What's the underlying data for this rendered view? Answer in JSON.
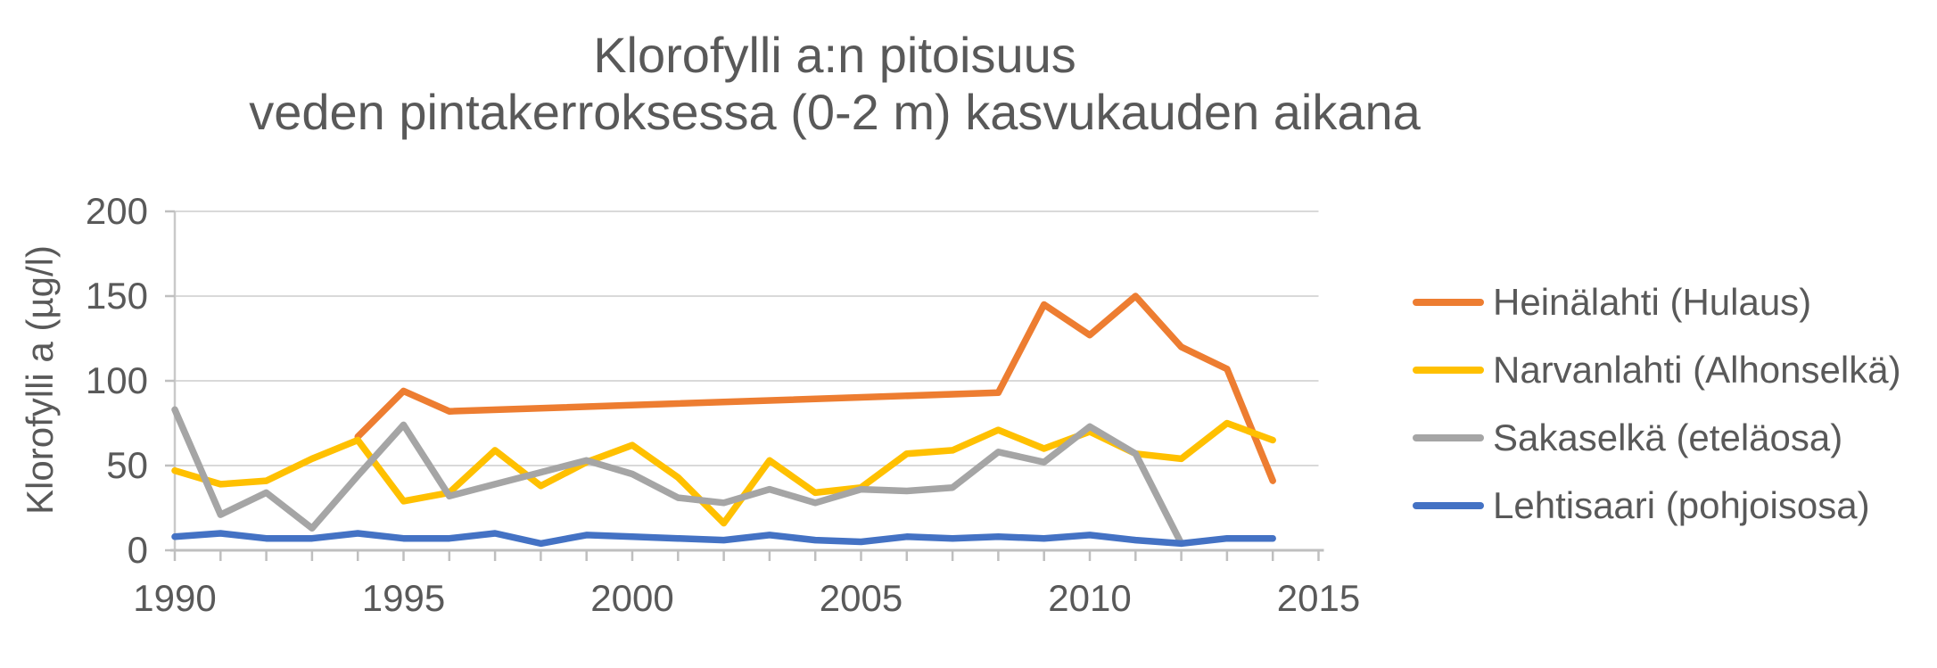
{
  "title": {
    "line1": "Klorofylli a:n pitoisuus",
    "line2": "veden pintakerroksessa (0-2 m) kasvukauden aikana"
  },
  "y_axis": {
    "label": "Klorofylli a (µg/l)",
    "ticks": [
      "200",
      "150",
      "100",
      "50",
      "0"
    ]
  },
  "x_axis": {
    "ticks": [
      "1990",
      "1995",
      "2000",
      "2005",
      "2010",
      "2015"
    ]
  },
  "legend": {
    "items": [
      {
        "label": "Heinälahti (Hulaus)",
        "color": "#ED7D31"
      },
      {
        "label": "Narvanlahti (Alhonselkä)",
        "color": "#FFC000"
      },
      {
        "label": "Sakaselkä (eteläosa)",
        "color": "#A5A5A5"
      },
      {
        "label": "Lehtisaari (pohjoisosa)",
        "color": "#4472C4"
      }
    ]
  },
  "chart_data": {
    "type": "line",
    "title": "Klorofylli a:n pitoisuus veden pintakerroksessa (0-2 m) kasvukauden aikana",
    "xlabel": "",
    "ylabel": "Klorofylli a (µg/l)",
    "xlim": [
      1990,
      2015
    ],
    "ylim": [
      0,
      200
    ],
    "y_gridlines": [
      50,
      100,
      150,
      200
    ],
    "x_minor_tick_interval_years": 1,
    "x_major_tick_labels": [
      1990,
      1995,
      2000,
      2005,
      2010,
      2015
    ],
    "grid": true,
    "legend_position": "right",
    "gap_handling": "missing years connected with straight segments (Heinälahti has no data 1997-2007)",
    "series": [
      {
        "name": "Heinälahti (Hulaus)",
        "color": "#ED7D31",
        "points": [
          [
            1994,
            67
          ],
          [
            1995,
            94
          ],
          [
            1996,
            82
          ],
          [
            2008,
            93
          ],
          [
            2009,
            145
          ],
          [
            2010,
            127
          ],
          [
            2011,
            150
          ],
          [
            2012,
            120
          ],
          [
            2013,
            107
          ],
          [
            2014,
            41
          ]
        ]
      },
      {
        "name": "Narvanlahti (Alhonselkä)",
        "color": "#FFC000",
        "points": [
          [
            1990,
            47
          ],
          [
            1991,
            39
          ],
          [
            1992,
            41
          ],
          [
            1993,
            54
          ],
          [
            1994,
            65
          ],
          [
            1995,
            29
          ],
          [
            1996,
            34
          ],
          [
            1997,
            59
          ],
          [
            1998,
            38
          ],
          [
            1999,
            52
          ],
          [
            2000,
            62
          ],
          [
            2001,
            43
          ],
          [
            2002,
            16
          ],
          [
            2003,
            53
          ],
          [
            2004,
            34
          ],
          [
            2005,
            37
          ],
          [
            2006,
            57
          ],
          [
            2007,
            59
          ],
          [
            2008,
            71
          ],
          [
            2009,
            60
          ],
          [
            2010,
            70
          ],
          [
            2011,
            57
          ],
          [
            2012,
            54
          ],
          [
            2013,
            75
          ],
          [
            2014,
            65
          ]
        ]
      },
      {
        "name": "Sakaselkä (eteläosa)",
        "color": "#A5A5A5",
        "points": [
          [
            1990,
            83
          ],
          [
            1991,
            21
          ],
          [
            1992,
            34
          ],
          [
            1993,
            13
          ],
          [
            1994,
            44
          ],
          [
            1995,
            74
          ],
          [
            1996,
            32
          ],
          [
            1997,
            39
          ],
          [
            1998,
            46
          ],
          [
            1999,
            53
          ],
          [
            2000,
            45
          ],
          [
            2001,
            31
          ],
          [
            2002,
            28
          ],
          [
            2003,
            36
          ],
          [
            2004,
            28
          ],
          [
            2005,
            36
          ],
          [
            2006,
            35
          ],
          [
            2007,
            37
          ],
          [
            2008,
            58
          ],
          [
            2009,
            52
          ],
          [
            2010,
            73
          ],
          [
            2011,
            57
          ],
          [
            2012,
            4
          ]
        ]
      },
      {
        "name": "Lehtisaari (pohjoisosa)",
        "color": "#4472C4",
        "points": [
          [
            1990,
            8
          ],
          [
            1991,
            10
          ],
          [
            1992,
            7
          ],
          [
            1993,
            7
          ],
          [
            1994,
            10
          ],
          [
            1995,
            7
          ],
          [
            1996,
            7
          ],
          [
            1997,
            10
          ],
          [
            1998,
            4
          ],
          [
            1999,
            9
          ],
          [
            2000,
            8
          ],
          [
            2001,
            7
          ],
          [
            2002,
            6
          ],
          [
            2003,
            9
          ],
          [
            2004,
            6
          ],
          [
            2005,
            5
          ],
          [
            2006,
            8
          ],
          [
            2007,
            7
          ],
          [
            2008,
            8
          ],
          [
            2009,
            7
          ],
          [
            2010,
            9
          ],
          [
            2011,
            6
          ],
          [
            2012,
            4
          ],
          [
            2013,
            7
          ],
          [
            2014,
            7
          ]
        ]
      }
    ],
    "style": {
      "line_width": 7.5,
      "gridline_color": "#D9D9D9",
      "axis_color": "#BFBFBF",
      "text_color": "#595959",
      "background": "#FFFFFF"
    }
  }
}
